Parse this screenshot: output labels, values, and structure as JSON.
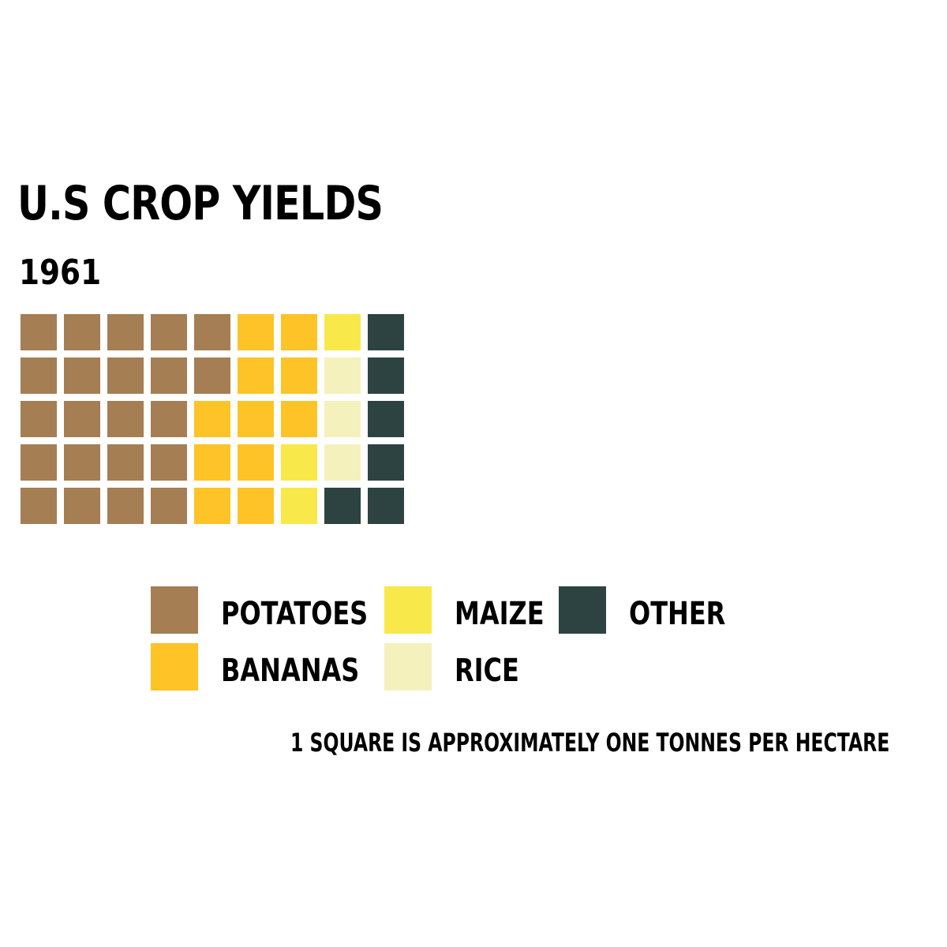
{
  "chart_data": {
    "type": "waffle",
    "title": "U.S CROP YIELDS",
    "subtitle": "1961",
    "rows": 5,
    "columns": 9,
    "categories": [
      "POTATOES",
      "BANANAS",
      "MAIZE",
      "RICE",
      "OTHER"
    ],
    "values": [
      22,
      11,
      3,
      3,
      6
    ],
    "colors": {
      "POTATOES": "#a57e54",
      "BANANAS": "#fdc327",
      "MAIZE": "#f9e84a",
      "RICE": "#f4f1bc",
      "OTHER": "#2c4341"
    },
    "legend": {
      "placement": "bottom",
      "items": [
        {
          "label": "POTATOES",
          "color": "#a57e54"
        },
        {
          "label": "BANANAS",
          "color": "#fdc327"
        },
        {
          "label": "MAIZE",
          "color": "#f9e84a"
        },
        {
          "label": "RICE",
          "color": "#f4f1bc"
        },
        {
          "label": "OTHER",
          "color": "#2c4341"
        }
      ]
    },
    "caption": "1 SQUARE IS APPROXIMATELY ONE TONNES PER HECTARE",
    "fill_order": "column-major, top to bottom"
  }
}
